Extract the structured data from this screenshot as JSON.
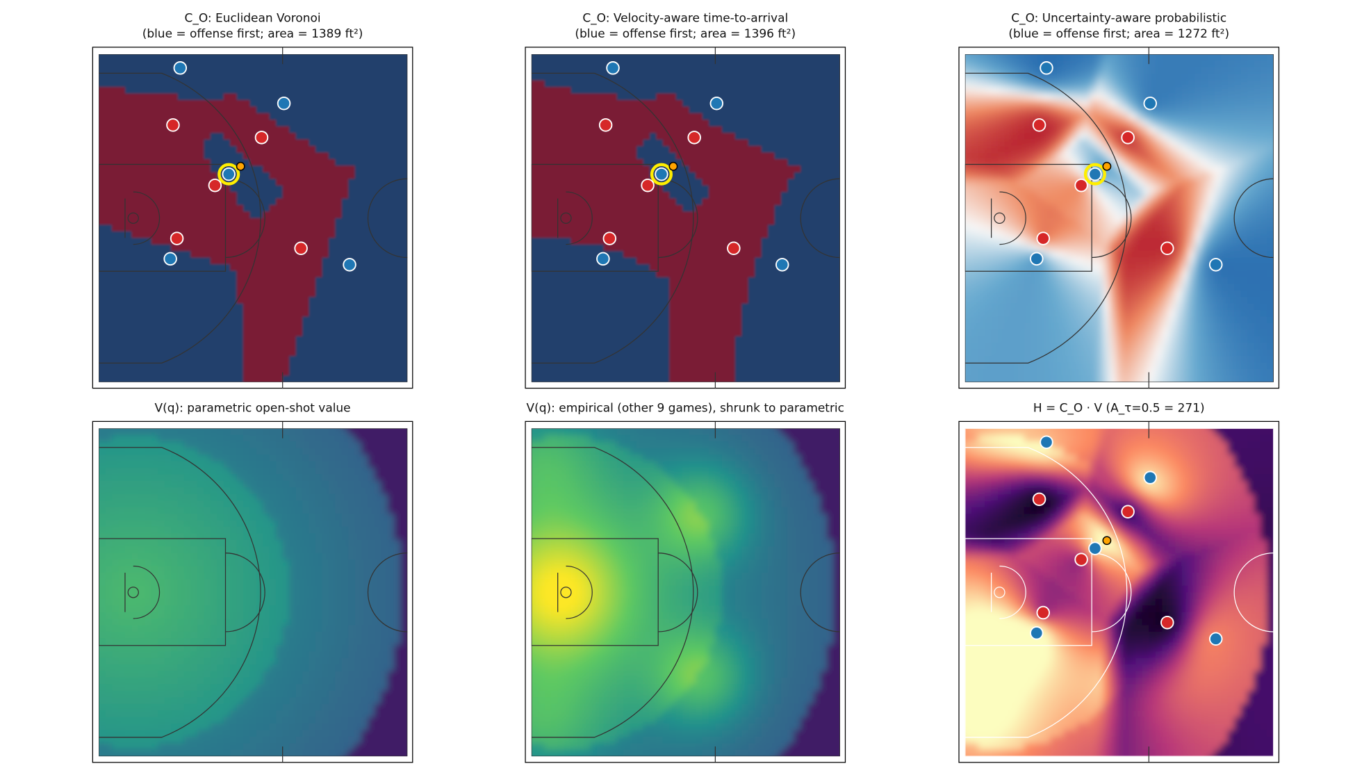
{
  "panels": [
    {
      "title": "C_O: Euclidean Voronoi",
      "subtitle": "(blue = offense first; area = 1389 ft²)"
    },
    {
      "title": "C_O: Velocity-aware time-to-arrival",
      "subtitle": "(blue = offense first; area = 1396 ft²)"
    },
    {
      "title": "C_O: Uncertainty-aware probabilistic",
      "subtitle": "(blue = offense first; area = 1272 ft²)"
    },
    {
      "title": "V(q): parametric open-shot value"
    },
    {
      "title": "V(q): empirical (other 9 games), shrunk to parametric"
    },
    {
      "title": "H = C_O · V   (A_τ=0.5 = 271)"
    }
  ],
  "offense": [
    {
      "x": 12.4,
      "y": 2.1
    },
    {
      "x": 28.2,
      "y": 7.5
    },
    {
      "x": 19.8,
      "y": 18.3
    },
    {
      "x": 10.9,
      "y": 31.2
    },
    {
      "x": 38.2,
      "y": 32.1
    }
  ],
  "defense": [
    {
      "x": 11.3,
      "y": 10.8
    },
    {
      "x": 24.8,
      "y": 12.7
    },
    {
      "x": 17.7,
      "y": 20.0
    },
    {
      "x": 11.9,
      "y": 28.1
    },
    {
      "x": 30.8,
      "y": 29.6
    }
  ],
  "ball": {
    "x": 21.6,
    "y": 17.1
  }
}
